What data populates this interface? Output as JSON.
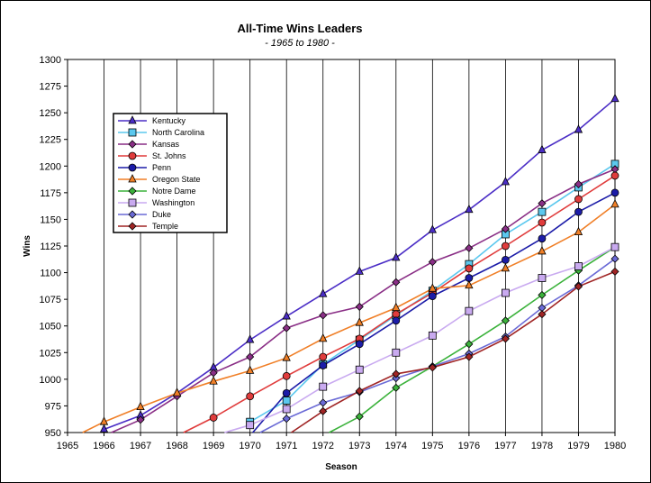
{
  "chart_data": {
    "type": "line",
    "title": "All-Time Wins Leaders",
    "subtitle": "- 1965 to 1980 -",
    "xlabel": "Season",
    "ylabel": "Wins",
    "xlim": [
      1965,
      1980
    ],
    "ylim": [
      950,
      1300
    ],
    "xticks": [
      "1965",
      "1966",
      "1967",
      "1968",
      "1969",
      "1970",
      "1971",
      "1972",
      "1973",
      "1974",
      "1975",
      "1976",
      "1977",
      "1978",
      "1979",
      "1980"
    ],
    "yticks": [
      "950",
      "975",
      "1000",
      "1025",
      "1050",
      "1075",
      "1100",
      "1125",
      "1150",
      "1175",
      "1200",
      "1225",
      "1250",
      "1275",
      "1300"
    ],
    "grid": "vertical",
    "legend_position": "upper-left",
    "series": [
      {
        "name": "Kentucky",
        "color": "#4b2ec6",
        "marker": "triangle",
        "points": [
          [
            1966,
            953
          ],
          [
            1967,
            966
          ],
          [
            1968,
            987
          ],
          [
            1969,
            1011
          ],
          [
            1970,
            1037
          ],
          [
            1971,
            1059
          ],
          [
            1972,
            1080
          ],
          [
            1973,
            1101
          ],
          [
            1974,
            1114
          ],
          [
            1975,
            1140
          ],
          [
            1976,
            1159
          ],
          [
            1977,
            1185
          ],
          [
            1978,
            1215
          ],
          [
            1979,
            1234
          ],
          [
            1980,
            1263
          ]
        ]
      },
      {
        "name": "North Carolina",
        "color": "#5bc8ee",
        "marker": "square",
        "points": [
          [
            1970,
            960
          ],
          [
            1971,
            980
          ],
          [
            1972,
            1014
          ],
          [
            1973,
            1037
          ],
          [
            1974,
            1060
          ],
          [
            1975,
            1083
          ],
          [
            1976,
            1108
          ],
          [
            1977,
            1136
          ],
          [
            1978,
            1157
          ],
          [
            1979,
            1180
          ],
          [
            1980,
            1202
          ]
        ]
      },
      {
        "name": "Kansas",
        "color": "#8a2f86",
        "marker": "diamond",
        "points": [
          [
            1966,
            947
          ],
          [
            1967,
            962
          ],
          [
            1968,
            984
          ],
          [
            1969,
            1006
          ],
          [
            1970,
            1021
          ],
          [
            1971,
            1048
          ],
          [
            1972,
            1060
          ],
          [
            1973,
            1068
          ],
          [
            1974,
            1091
          ],
          [
            1975,
            1110
          ],
          [
            1976,
            1123
          ],
          [
            1977,
            1141
          ],
          [
            1978,
            1165
          ],
          [
            1979,
            1183
          ],
          [
            1980,
            1197
          ]
        ]
      },
      {
        "name": "St. Johns",
        "color": "#e03c3c",
        "marker": "circle",
        "points": [
          [
            1968,
            947
          ],
          [
            1969,
            964
          ],
          [
            1970,
            984
          ],
          [
            1971,
            1003
          ],
          [
            1972,
            1021
          ],
          [
            1973,
            1038
          ],
          [
            1974,
            1061
          ],
          [
            1975,
            1081
          ],
          [
            1976,
            1104
          ],
          [
            1977,
            1125
          ],
          [
            1978,
            1147
          ],
          [
            1979,
            1169
          ],
          [
            1980,
            1191
          ]
        ]
      },
      {
        "name": "Penn",
        "color": "#1c1ca8",
        "marker": "circle",
        "points": [
          [
            1970,
            947
          ],
          [
            1971,
            987
          ],
          [
            1972,
            1013
          ],
          [
            1973,
            1033
          ],
          [
            1974,
            1055
          ],
          [
            1975,
            1078
          ],
          [
            1976,
            1095
          ],
          [
            1977,
            1112
          ],
          [
            1978,
            1132
          ],
          [
            1979,
            1157
          ],
          [
            1980,
            1175
          ]
        ]
      },
      {
        "name": "Oregon State",
        "color": "#f07f27",
        "marker": "triangle",
        "points": [
          [
            1965,
            943
          ],
          [
            1966,
            960
          ],
          [
            1967,
            974
          ],
          [
            1968,
            987
          ],
          [
            1969,
            998
          ],
          [
            1970,
            1008
          ],
          [
            1971,
            1020
          ],
          [
            1972,
            1038
          ],
          [
            1973,
            1053
          ],
          [
            1974,
            1067
          ],
          [
            1975,
            1085
          ],
          [
            1976,
            1088
          ],
          [
            1977,
            1104
          ],
          [
            1978,
            1120
          ],
          [
            1979,
            1138
          ],
          [
            1980,
            1164
          ]
        ]
      },
      {
        "name": "Notre Dame",
        "color": "#3bb23b",
        "marker": "diamond",
        "points": [
          [
            1972,
            947
          ],
          [
            1973,
            965
          ],
          [
            1974,
            992
          ],
          [
            1975,
            1012
          ],
          [
            1976,
            1033
          ],
          [
            1977,
            1055
          ],
          [
            1978,
            1079
          ],
          [
            1979,
            1102
          ],
          [
            1980,
            1124
          ]
        ]
      },
      {
        "name": "Washington",
        "color": "#c9aaf0",
        "marker": "square",
        "points": [
          [
            1969,
            947
          ],
          [
            1970,
            957
          ],
          [
            1971,
            972
          ],
          [
            1972,
            993
          ],
          [
            1973,
            1009
          ],
          [
            1974,
            1025
          ],
          [
            1975,
            1041
          ],
          [
            1976,
            1064
          ],
          [
            1977,
            1081
          ],
          [
            1978,
            1095
          ],
          [
            1979,
            1106
          ],
          [
            1980,
            1124
          ]
        ]
      },
      {
        "name": "Duke",
        "color": "#6a6ad6",
        "marker": "diamond",
        "points": [
          [
            1970,
            945
          ],
          [
            1971,
            963
          ],
          [
            1972,
            978
          ],
          [
            1973,
            988
          ],
          [
            1974,
            1001
          ],
          [
            1975,
            1012
          ],
          [
            1976,
            1024
          ],
          [
            1977,
            1040
          ],
          [
            1978,
            1067
          ],
          [
            1979,
            1088
          ],
          [
            1980,
            1113
          ]
        ]
      },
      {
        "name": "Temple",
        "color": "#a02525",
        "marker": "diamond",
        "points": [
          [
            1971,
            947
          ],
          [
            1972,
            970
          ],
          [
            1973,
            989
          ],
          [
            1974,
            1005
          ],
          [
            1975,
            1011
          ],
          [
            1976,
            1021
          ],
          [
            1977,
            1038
          ],
          [
            1978,
            1061
          ],
          [
            1979,
            1087
          ],
          [
            1980,
            1101
          ]
        ]
      }
    ]
  }
}
